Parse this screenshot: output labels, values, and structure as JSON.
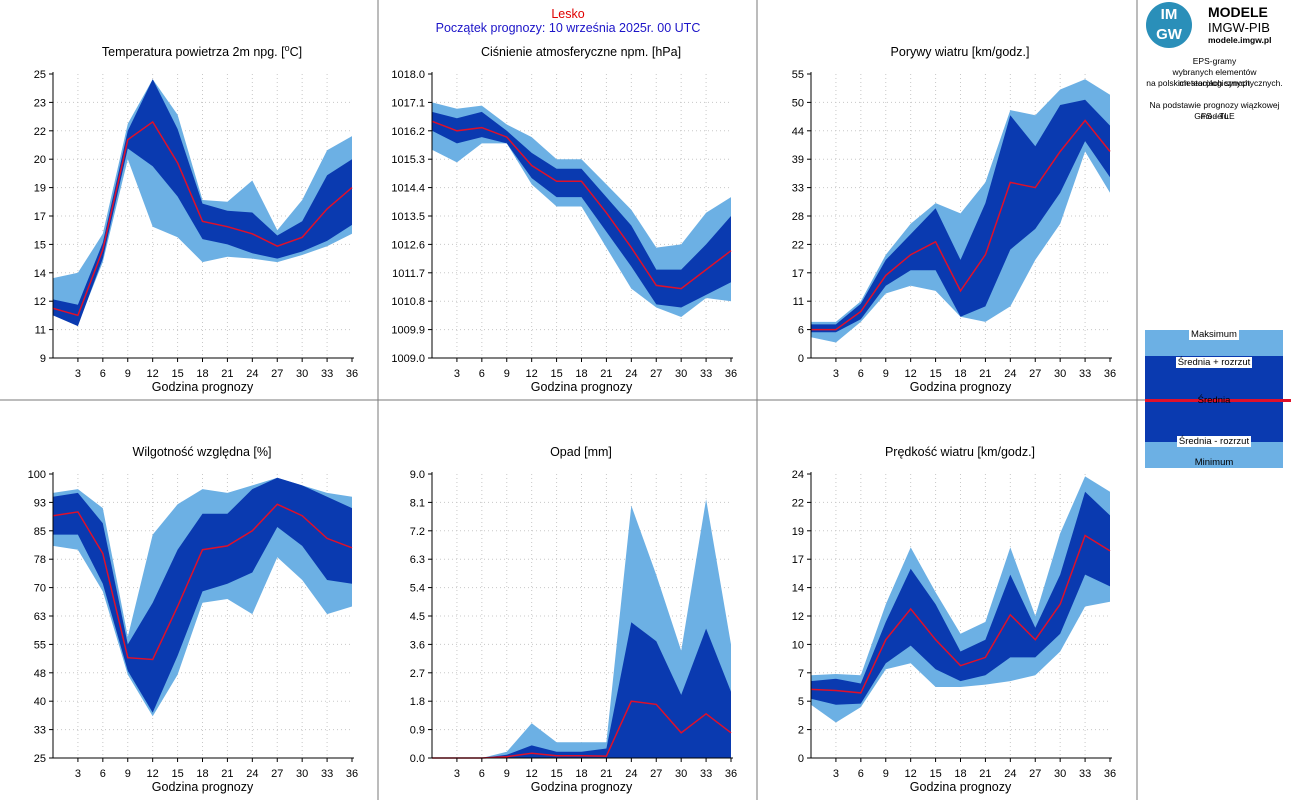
{
  "header": {
    "station": "Lesko",
    "forecast_start": "Początek prognozy: 10 września 2025r. 00 UTC"
  },
  "sidebar": {
    "logo_circle_top": "IM",
    "logo_circle_bottom": "GW",
    "logo_line1": "MODELE",
    "logo_line2": "IMGW-PIB",
    "logo_line3": "modele.imgw.pl",
    "desc_lines": [
      "EPS-gramy",
      "wybranych elementów meteorologicznych",
      "na polskich stacjach  synoptycznych."
    ],
    "model_lines": [
      "Na podstawie prognozy wiązkowej modelu",
      "GFS - TLE"
    ],
    "legend": {
      "max": "Maksimum",
      "mean_plus": "Średnia + rozrzut",
      "mean": "Średnia",
      "mean_minus": "Średnia - rozrzut",
      "min": "Minimum"
    }
  },
  "colors": {
    "light_band": "#6cb0e4",
    "dark_band": "#0a3ab0",
    "mean_line": "#e0102a",
    "station": "#e00000",
    "start": "#1c14c8"
  },
  "chart_data": [
    {
      "type": "area",
      "title": "Temperatura powietrza 2m npg. [°C]",
      "xlabel": "Godzina prognozy",
      "ylabel": "",
      "x": [
        0,
        3,
        6,
        9,
        12,
        15,
        18,
        21,
        24,
        27,
        30,
        33,
        36
      ],
      "xticks": [
        "3",
        "6",
        "9",
        "12",
        "15",
        "18",
        "21",
        "24",
        "27",
        "30",
        "33",
        "36"
      ],
      "yticks": [
        "9",
        "11",
        "12",
        "14",
        "15",
        "17",
        "19",
        "20",
        "22",
        "23",
        "25"
      ],
      "ylim": [
        9,
        25
      ],
      "series": [
        {
          "name": "Maksimum",
          "values": [
            13.5,
            13.8,
            16.0,
            22.2,
            24.7,
            22.7,
            17.9,
            17.8,
            19.0,
            16.2,
            17.9,
            20.7,
            21.5
          ]
        },
        {
          "name": "Średnia + rozrzut",
          "values": [
            12.3,
            12.0,
            15.5,
            21.8,
            24.7,
            21.9,
            17.7,
            17.3,
            17.2,
            15.9,
            16.7,
            19.3,
            20.2
          ]
        },
        {
          "name": "Średnia",
          "values": [
            11.8,
            11.4,
            15.1,
            21.3,
            22.3,
            20.0,
            16.7,
            16.4,
            16.0,
            15.3,
            15.8,
            17.4,
            18.6
          ]
        },
        {
          "name": "Średnia - rozrzut",
          "values": [
            11.4,
            10.8,
            14.6,
            20.8,
            19.8,
            18.1,
            15.7,
            15.4,
            14.9,
            14.6,
            15.0,
            15.6,
            16.5
          ]
        },
        {
          "name": "Minimum",
          "values": [
            11.5,
            10.9,
            14.4,
            20.2,
            16.4,
            15.8,
            14.4,
            14.7,
            14.6,
            14.4,
            14.8,
            15.3,
            16.0
          ]
        }
      ],
      "grid": true
    },
    {
      "type": "area",
      "title": "Ciśnienie atmosferyczne npm. [hPa]",
      "xlabel": "Godzina prognozy",
      "ylabel": "",
      "x": [
        0,
        3,
        6,
        9,
        12,
        15,
        18,
        21,
        24,
        27,
        30,
        33,
        36
      ],
      "xticks": [
        "3",
        "6",
        "9",
        "12",
        "15",
        "18",
        "21",
        "24",
        "27",
        "30",
        "33",
        "36"
      ],
      "yticks": [
        "1009.0",
        "1009.9",
        "1010.8",
        "1011.7",
        "1012.6",
        "1013.5",
        "1014.4",
        "1015.3",
        "1016.2",
        "1017.1",
        "1018.0"
      ],
      "ylim": [
        1009.0,
        1018.0
      ],
      "series": [
        {
          "name": "Maksimum",
          "values": [
            1017.1,
            1016.9,
            1017.0,
            1016.4,
            1016.0,
            1015.3,
            1015.3,
            1014.5,
            1013.7,
            1012.5,
            1012.6,
            1013.6,
            1014.1
          ]
        },
        {
          "name": "Średnia + rozrzut",
          "values": [
            1016.8,
            1016.6,
            1016.8,
            1016.2,
            1015.5,
            1015.0,
            1015.0,
            1014.1,
            1013.2,
            1011.8,
            1011.8,
            1012.6,
            1013.5
          ]
        },
        {
          "name": "Średnia",
          "values": [
            1016.5,
            1016.2,
            1016.3,
            1016.0,
            1015.1,
            1014.6,
            1014.6,
            1013.6,
            1012.5,
            1011.3,
            1011.2,
            1011.8,
            1012.4
          ]
        },
        {
          "name": "Średnia - rozrzut",
          "values": [
            1016.2,
            1015.8,
            1016.0,
            1015.8,
            1014.7,
            1014.1,
            1014.1,
            1013.0,
            1011.9,
            1010.7,
            1010.6,
            1011.0,
            1011.4
          ]
        },
        {
          "name": "Minimum",
          "values": [
            1015.6,
            1015.2,
            1015.8,
            1015.8,
            1014.5,
            1013.8,
            1013.8,
            1012.5,
            1011.2,
            1010.6,
            1010.3,
            1010.9,
            1010.8
          ]
        }
      ],
      "grid": true
    },
    {
      "type": "area",
      "title": "Porywy wiatru [km/godz.]",
      "xlabel": "Godzina prognozy",
      "ylabel": "",
      "x": [
        0,
        3,
        6,
        9,
        12,
        15,
        18,
        21,
        24,
        27,
        30,
        33,
        36
      ],
      "xticks": [
        "3",
        "6",
        "9",
        "12",
        "15",
        "18",
        "21",
        "24",
        "27",
        "30",
        "33",
        "36"
      ],
      "yticks": [
        "0",
        "6",
        "11",
        "17",
        "22",
        "28",
        "33",
        "39",
        "44",
        "50",
        "55"
      ],
      "ylim": [
        0,
        55
      ],
      "series": [
        {
          "name": "Maksimum",
          "values": [
            7.0,
            7.0,
            11.0,
            20.0,
            26.0,
            30.0,
            28.0,
            34.0,
            48.0,
            47.0,
            52.0,
            54.0,
            51.0
          ]
        },
        {
          "name": "Średnia + rozrzut",
          "values": [
            6.5,
            6.5,
            10.5,
            19.0,
            24.0,
            29.0,
            19.0,
            30.0,
            47.0,
            41.0,
            49.0,
            50.0,
            45.0
          ]
        },
        {
          "name": "Średnia",
          "values": [
            5.5,
            5.5,
            9.0,
            16.0,
            20.0,
            22.5,
            13.0,
            20.0,
            34.0,
            33.0,
            40.0,
            46.0,
            40.0
          ]
        },
        {
          "name": "Średnia - rozrzut",
          "values": [
            5.0,
            5.0,
            7.5,
            14.0,
            17.0,
            17.0,
            8.0,
            10.0,
            21.0,
            25.0,
            32.0,
            42.0,
            35.0
          ]
        },
        {
          "name": "Minimum",
          "values": [
            4.0,
            3.0,
            7.0,
            12.5,
            14.0,
            13.0,
            8.0,
            7.0,
            10.0,
            19.0,
            26.0,
            40.0,
            32.0
          ]
        }
      ],
      "grid": true
    },
    {
      "type": "area",
      "title": "Wilgotność względna [%]",
      "xlabel": "Godzina prognozy",
      "ylabel": "",
      "x": [
        0,
        3,
        6,
        9,
        12,
        15,
        18,
        21,
        24,
        27,
        30,
        33,
        36
      ],
      "xticks": [
        "3",
        "6",
        "9",
        "12",
        "15",
        "18",
        "21",
        "24",
        "27",
        "30",
        "33",
        "36"
      ],
      "yticks": [
        "25",
        "33",
        "40",
        "48",
        "55",
        "63",
        "70",
        "78",
        "85",
        "93",
        "100"
      ],
      "ylim": [
        25,
        100
      ],
      "series": [
        {
          "name": "Maksimum",
          "values": [
            95.0,
            96.0,
            91.0,
            57.0,
            84.0,
            92.0,
            96.0,
            95.0,
            97.0,
            99.0,
            97.0,
            95.0,
            94.0
          ]
        },
        {
          "name": "Średnia + rozrzut",
          "values": [
            94.0,
            95.0,
            87.0,
            55.0,
            66.0,
            80.0,
            89.5,
            89.5,
            96.0,
            99.0,
            97.0,
            94.0,
            91.0
          ]
        },
        {
          "name": "Średnia",
          "values": [
            89.0,
            90.0,
            79.0,
            51.5,
            51.0,
            65.0,
            80.0,
            81.0,
            85.0,
            92.0,
            89.0,
            83.0,
            80.5
          ]
        },
        {
          "name": "Średnia - rozrzut",
          "values": [
            84.0,
            84.0,
            71.0,
            48.0,
            37.0,
            52.0,
            69.0,
            71.0,
            74.0,
            86.0,
            81.0,
            72.0,
            71.0
          ]
        },
        {
          "name": "Minimum",
          "values": [
            81.0,
            80.0,
            69.0,
            47.0,
            36.0,
            47.0,
            66.0,
            67.0,
            63.0,
            78.0,
            72.0,
            63.0,
            65.0
          ]
        }
      ],
      "grid": true
    },
    {
      "type": "area",
      "title": "Opad [mm]",
      "xlabel": "Godzina prognozy",
      "ylabel": "",
      "x": [
        0,
        3,
        6,
        9,
        12,
        15,
        18,
        21,
        24,
        27,
        30,
        33,
        36
      ],
      "xticks": [
        "3",
        "6",
        "9",
        "12",
        "15",
        "18",
        "21",
        "24",
        "27",
        "30",
        "33",
        "36"
      ],
      "yticks": [
        "0.0",
        "0.9",
        "1.8",
        "2.7",
        "3.6",
        "4.5",
        "5.4",
        "6.3",
        "7.2",
        "8.1",
        "9.0"
      ],
      "ylim": [
        0,
        9.0
      ],
      "series": [
        {
          "name": "Maksimum",
          "values": [
            0.0,
            0.0,
            0.0,
            0.2,
            1.1,
            0.5,
            0.5,
            0.5,
            8.0,
            5.8,
            3.4,
            8.2,
            3.6
          ]
        },
        {
          "name": "Średnia + rozrzut",
          "values": [
            0.0,
            0.0,
            0.0,
            0.1,
            0.4,
            0.2,
            0.2,
            0.3,
            4.3,
            3.7,
            2.0,
            4.1,
            2.1
          ]
        },
        {
          "name": "Średnia",
          "values": [
            0.0,
            0.0,
            0.0,
            0.04,
            0.15,
            0.07,
            0.07,
            0.06,
            1.8,
            1.7,
            0.8,
            1.4,
            0.8
          ]
        },
        {
          "name": "Średnia - rozrzut",
          "values": [
            0.0,
            0.0,
            0.0,
            0.0,
            0.0,
            0.0,
            0.0,
            0.0,
            0.0,
            0.0,
            0.0,
            0.0,
            0.0
          ]
        },
        {
          "name": "Minimum",
          "values": [
            0.0,
            0.0,
            0.0,
            0.0,
            0.0,
            0.0,
            0.0,
            0.0,
            0.0,
            0.0,
            0.0,
            0.0,
            0.0
          ]
        }
      ],
      "grid": true
    },
    {
      "type": "area",
      "title": "Prędkość wiatru [km/godz.]",
      "xlabel": "Godzina prognozy",
      "ylabel": "",
      "x": [
        0,
        3,
        6,
        9,
        12,
        15,
        18,
        21,
        24,
        27,
        30,
        33,
        36
      ],
      "xticks": [
        "3",
        "6",
        "9",
        "12",
        "15",
        "18",
        "21",
        "24",
        "27",
        "30",
        "33",
        "36"
      ],
      "yticks": [
        "0",
        "2",
        "5",
        "7",
        "10",
        "12",
        "14",
        "17",
        "19",
        "22",
        "24"
      ],
      "ylim": [
        0,
        24
      ],
      "series": [
        {
          "name": "Maksimum",
          "values": [
            7.0,
            7.1,
            7.0,
            13.0,
            17.8,
            14.0,
            10.5,
            11.5,
            17.8,
            12.0,
            19.0,
            23.8,
            22.5
          ]
        },
        {
          "name": "Średnia + rozrzut",
          "values": [
            6.5,
            6.7,
            6.3,
            11.5,
            16.0,
            13.0,
            9.0,
            10.0,
            15.5,
            11.0,
            15.5,
            22.5,
            20.5
          ]
        },
        {
          "name": "Średnia",
          "values": [
            5.8,
            5.7,
            5.5,
            10.0,
            12.6,
            10.0,
            7.8,
            8.5,
            12.1,
            10.0,
            13.0,
            18.8,
            17.5
          ]
        },
        {
          "name": "Średnia - rozrzut",
          "values": [
            5.0,
            4.5,
            4.6,
            8.0,
            9.5,
            7.5,
            6.5,
            7.0,
            8.5,
            8.5,
            10.5,
            15.5,
            14.5
          ]
        },
        {
          "name": "Minimum",
          "values": [
            4.5,
            3.0,
            4.3,
            7.5,
            8.0,
            6.0,
            6.0,
            6.2,
            6.5,
            7.0,
            9.0,
            12.8,
            13.2
          ]
        }
      ],
      "grid": true
    }
  ]
}
